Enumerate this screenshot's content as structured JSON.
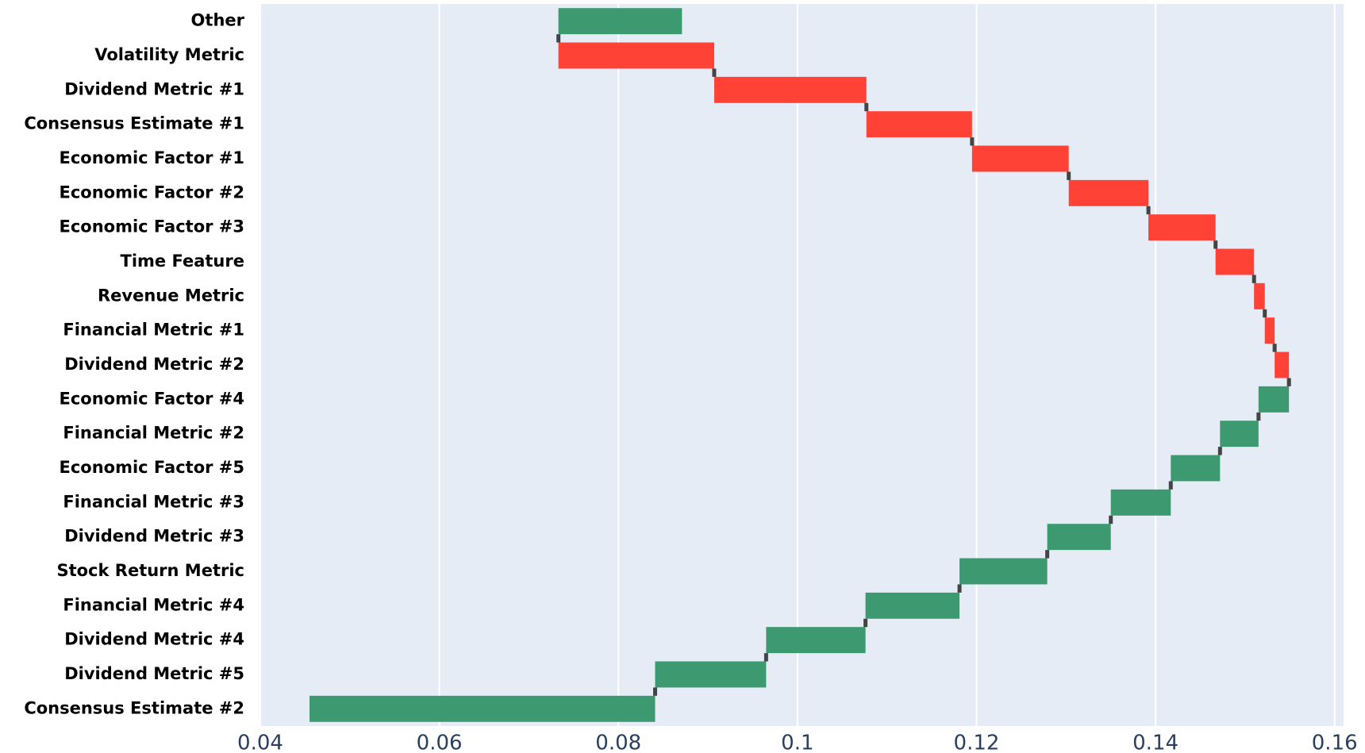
{
  "chart_data": {
    "type": "waterfall",
    "orientation": "horizontal",
    "categories": [
      "Other",
      "Volatility Metric",
      "Dividend Metric #1",
      "Consensus Estimate #1",
      "Economic Factor #1",
      "Economic Factor #2",
      "Economic Factor #3",
      "Time Feature",
      "Revenue Metric",
      "Financial Metric #1",
      "Dividend Metric #2",
      "Economic Factor #4",
      "Financial Metric #2",
      "Economic Factor #5",
      "Financial Metric #3",
      "Dividend Metric #3",
      "Stock Return Metric",
      "Financial Metric #4",
      "Dividend Metric #4",
      "Dividend Metric #5",
      "Consensus Estimate #2"
    ],
    "base": 0.0455,
    "values": [
      0.0138,
      -0.0174,
      -0.017,
      -0.0118,
      -0.0108,
      -0.0089,
      -0.0075,
      -0.0043,
      -0.0012,
      -0.0011,
      -0.0016,
      0.0034,
      0.0043,
      0.0055,
      0.0067,
      0.0071,
      0.0098,
      0.0105,
      0.0111,
      0.0124,
      0.0386
    ],
    "increasing_color": "#3d9970",
    "decreasing_color": "#ff4136",
    "connector_color": "#444444",
    "xlim": [
      0.04,
      0.161
    ],
    "xticks": [
      0.04,
      0.06,
      0.08,
      0.1,
      0.12,
      0.14,
      0.16
    ],
    "grid": true
  }
}
